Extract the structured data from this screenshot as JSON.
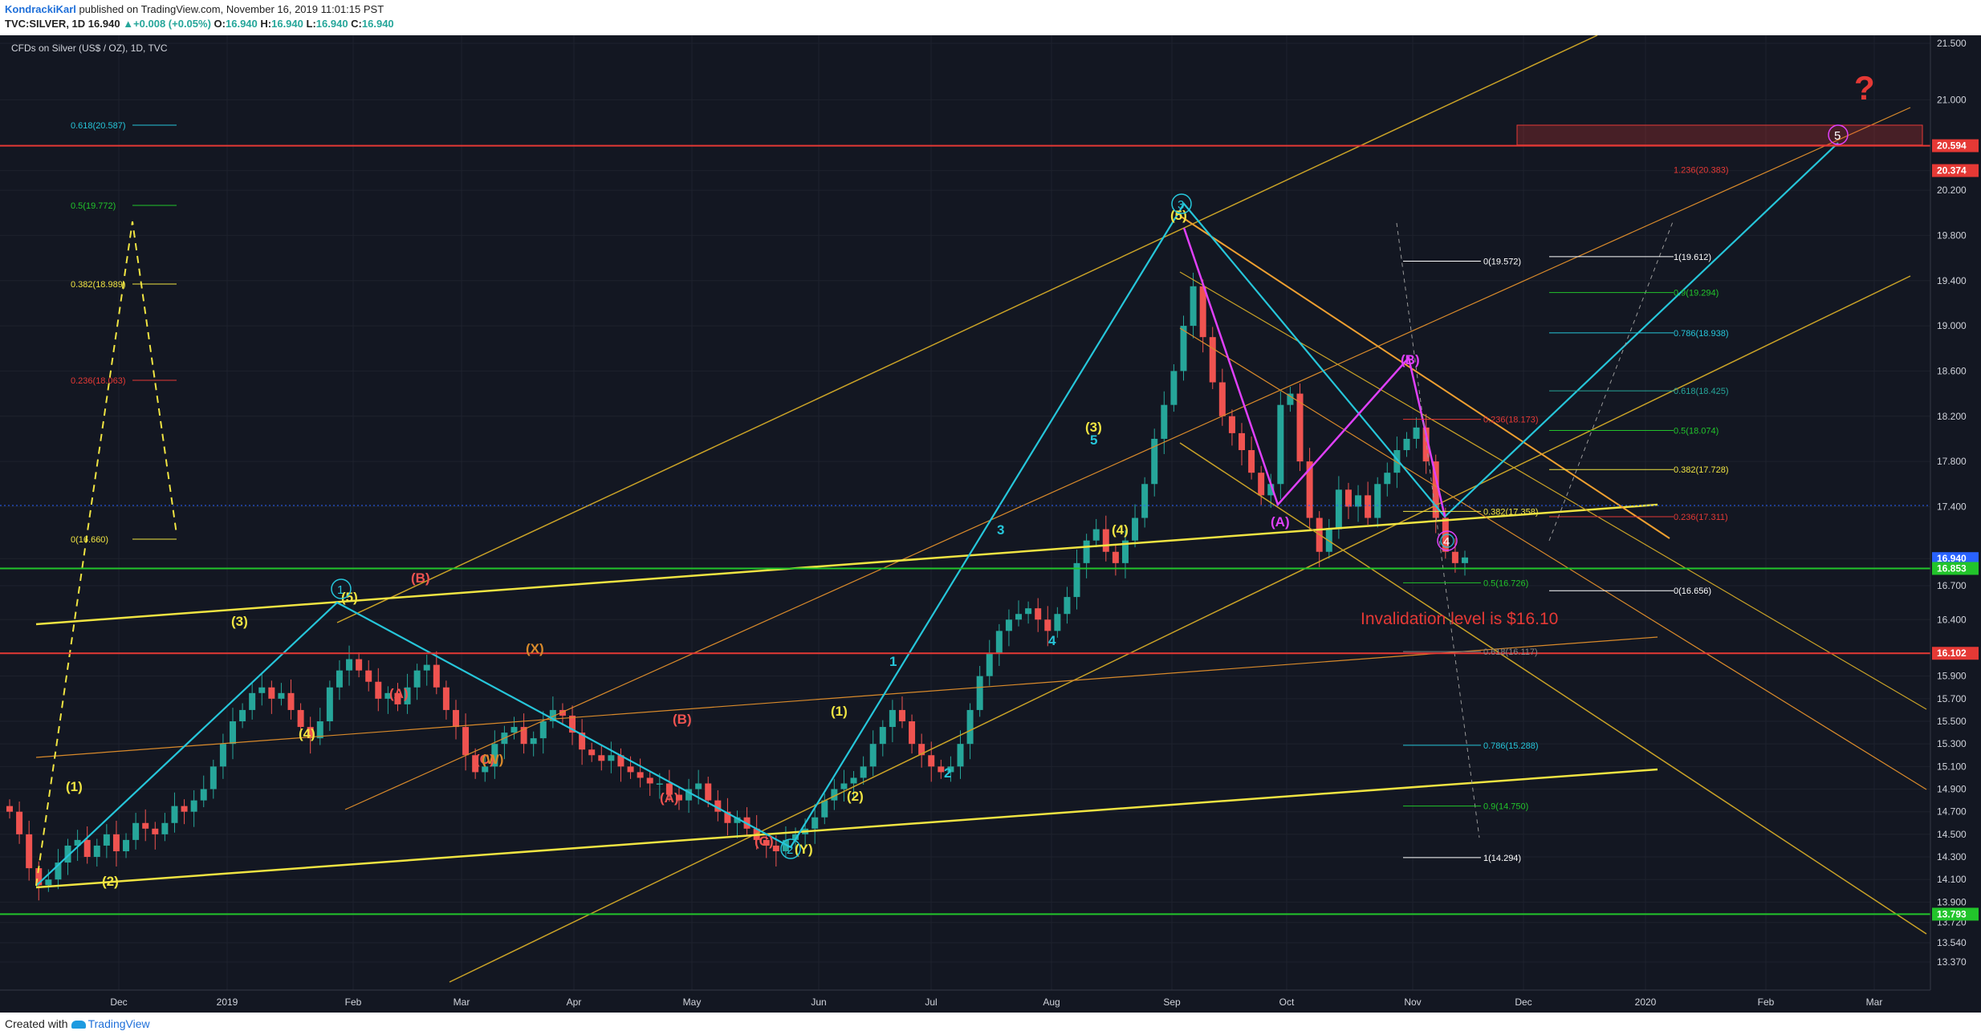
{
  "header": {
    "author": "KondrackiKarl",
    "published": "published on TradingView.com, November 16, 2019 11:01:15 PST",
    "symbol": "TVC:SILVER, 1D",
    "last": "16.940",
    "change": "+0.008 (+0.05%)",
    "ohlc_open_label": "O:",
    "ohlc_open": "16.940",
    "ohlc_high_label": "H:",
    "ohlc_high": "16.940",
    "ohlc_low_label": "L:",
    "ohlc_low": "16.940",
    "ohlc_close_label": "C:",
    "ohlc_close": "16.940"
  },
  "footer": {
    "created_with": "Created with",
    "brand": "TradingView"
  },
  "colors": {
    "background": "#131722",
    "grid": "#1f2330",
    "up": "#26a69a",
    "down": "#ef5350",
    "cyan": "#26c6da",
    "yellow": "#f0e442",
    "orange": "#d98a2b",
    "magenta": "#e040fb",
    "red": "#e53935",
    "green": "#22c42b",
    "white": "#ffffff"
  },
  "chart_data": {
    "type": "candlestick",
    "title": "CFDs on Silver (US$ / OZ), 1D, TVC",
    "x_axis_labels": [
      "Dec",
      "2019",
      "Feb",
      "Mar",
      "Apr",
      "May",
      "Jun",
      "Jul",
      "Aug",
      "Sep",
      "Oct",
      "Nov",
      "Dec",
      "2020",
      "Feb",
      "Mar"
    ],
    "y_ticks": [
      "21.500",
      "21.000",
      "20.594",
      "20.374",
      "20.200",
      "19.800",
      "19.400",
      "19.000",
      "18.600",
      "18.200",
      "17.800",
      "17.400",
      "16.940",
      "16.853",
      "16.700",
      "16.400",
      "16.102",
      "15.900",
      "15.700",
      "15.500",
      "15.300",
      "15.100",
      "14.900",
      "14.700",
      "14.500",
      "14.300",
      "14.100",
      "13.900",
      "13.793",
      "13.720",
      "13.540",
      "13.370"
    ],
    "y_range": [
      13.3,
      21.6
    ],
    "price_badges": [
      {
        "label": "20.594",
        "color": "#e53935"
      },
      {
        "label": "20.374",
        "color": "#e53935"
      },
      {
        "label": "16.940",
        "color": "#2962ff"
      },
      {
        "label": "16.853",
        "color": "#22c42b"
      },
      {
        "label": "16.102",
        "color": "#e53935"
      },
      {
        "label": "13.793",
        "color": "#22c42b"
      }
    ],
    "horizontal_levels": [
      {
        "price": 20.594,
        "color": "#e53935"
      },
      {
        "price": 16.853,
        "color": "#22c42b"
      },
      {
        "price": 16.102,
        "color": "#e53935"
      },
      {
        "price": 13.793,
        "color": "#22c42b"
      }
    ],
    "close_series_start": "mid-Nov 2018",
    "close_series": [
      14.7,
      14.5,
      14.2,
      14.05,
      14.1,
      14.25,
      14.4,
      14.45,
      14.3,
      14.4,
      14.5,
      14.35,
      14.45,
      14.6,
      14.55,
      14.5,
      14.6,
      14.75,
      14.7,
      14.8,
      14.9,
      15.1,
      15.3,
      15.5,
      15.6,
      15.75,
      15.8,
      15.7,
      15.75,
      15.6,
      15.45,
      15.35,
      15.5,
      15.8,
      15.95,
      16.05,
      15.95,
      15.85,
      15.7,
      15.75,
      15.65,
      15.8,
      15.95,
      16.0,
      15.8,
      15.6,
      15.45,
      15.2,
      15.05,
      15.1,
      15.3,
      15.4,
      15.45,
      15.3,
      15.35,
      15.5,
      15.6,
      15.55,
      15.4,
      15.25,
      15.2,
      15.15,
      15.2,
      15.1,
      15.05,
      15.0,
      14.95,
      14.95,
      14.85,
      14.8,
      14.9,
      14.95,
      14.8,
      14.7,
      14.6,
      14.65,
      14.55,
      14.45,
      14.4,
      14.35,
      14.45,
      14.5,
      14.55,
      14.65,
      14.8,
      14.9,
      14.95,
      15.0,
      15.1,
      15.3,
      15.45,
      15.6,
      15.5,
      15.3,
      15.2,
      15.1,
      15.05,
      15.1,
      15.3,
      15.6,
      15.9,
      16.1,
      16.3,
      16.4,
      16.45,
      16.5,
      16.4,
      16.3,
      16.45,
      16.6,
      16.9,
      17.1,
      17.2,
      17.0,
      16.9,
      17.1,
      17.3,
      17.6,
      18.0,
      18.3,
      18.6,
      19.0,
      19.35,
      18.9,
      18.5,
      18.2,
      18.05,
      17.9,
      17.7,
      17.5,
      17.6,
      18.3,
      18.4,
      17.8,
      17.3,
      17.0,
      17.2,
      17.55,
      17.4,
      17.5,
      17.3,
      17.6,
      17.7,
      17.9,
      18.0,
      18.1,
      17.8,
      17.3,
      17.0,
      16.9,
      16.95
    ],
    "labels_note": "Elliott wave labels, Fibonacci retracement levels and text annotations as drawn on the chart",
    "fib_left": [
      {
        "label": "0.618(20.587)",
        "color": "#26c6da"
      },
      {
        "label": "0.5(19.772)",
        "color": "#22c42b"
      },
      {
        "label": "0.382(18.989)",
        "color": "#f0e442"
      },
      {
        "label": "0.236(18.063)",
        "color": "#e53935"
      },
      {
        "label": "0(16.660)",
        "color": "#f0e442"
      }
    ],
    "fib_right": [
      {
        "label": "1(19.612)",
        "color": "#ffffff"
      },
      {
        "label": "0.9(19.294)",
        "color": "#22c42b"
      },
      {
        "label": "0.786(18.938)",
        "color": "#26c6da"
      },
      {
        "label": "0.618(18.425)",
        "color": "#26a69a"
      },
      {
        "label": "0.5(18.074)",
        "color": "#22c42b"
      },
      {
        "label": "0.382(17.728)",
        "color": "#f0e442"
      },
      {
        "label": "0.236(17.311)",
        "color": "#e53935"
      },
      {
        "label": "0(16.656)",
        "color": "#ffffff"
      }
    ],
    "fib_mid": [
      {
        "label": "0(19.572)",
        "color": "#ffffff"
      },
      {
        "label": "0.236(18.173)",
        "color": "#e53935"
      },
      {
        "label": "0.382(17.358)",
        "color": "#f0e442"
      },
      {
        "label": "0.5(16.726)",
        "color": "#22c42b"
      },
      {
        "label": "0.618(16.117)",
        "color": "#888888"
      },
      {
        "label": "0.786(15.288)",
        "color": "#26c6da"
      },
      {
        "label": "0.9(14.750)",
        "color": "#22c42b"
      },
      {
        "label": "1(14.294)",
        "color": "#ffffff"
      }
    ],
    "fib_ext_label": "1.236(20.383)",
    "annotations": {
      "invalidation": "Invalidation level is $16.10",
      "question": "?"
    },
    "wave_labels": {
      "w1": "(1)",
      "w2": "(2)",
      "w3": "(3)",
      "w4": "(4)",
      "w5": "(5)",
      "wA": "(A)",
      "wB": "(B)",
      "wC": "(C)",
      "wW": "(W)",
      "wX": "(X)",
      "wY": "(Y)",
      "n1": "1",
      "n2": "2",
      "n3": "3",
      "n4": "4",
      "n5": "5",
      "nA": "A",
      "c1": "1",
      "c2": "2",
      "c3": "3",
      "c4": "4",
      "c5": "5"
    }
  }
}
